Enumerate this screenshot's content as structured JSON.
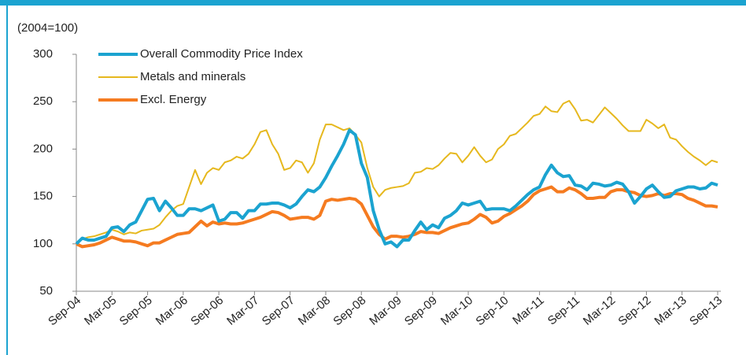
{
  "chart_data": {
    "type": "line",
    "y_label": "(2004=100)",
    "categories": [
      "Sep-04",
      null,
      null,
      null,
      null,
      null,
      "Mar-05",
      null,
      null,
      null,
      null,
      null,
      "Sep-05",
      null,
      null,
      null,
      null,
      null,
      "Mar-06",
      null,
      null,
      null,
      null,
      null,
      "Sep-06",
      null,
      null,
      null,
      null,
      null,
      "Mar-07",
      null,
      null,
      null,
      null,
      null,
      "Sep-07",
      null,
      null,
      null,
      null,
      null,
      "Mar-08",
      null,
      null,
      null,
      null,
      null,
      "Sep-08",
      null,
      null,
      null,
      null,
      null,
      "Mar-09",
      null,
      null,
      null,
      null,
      null,
      "Sep-09",
      null,
      null,
      null,
      null,
      null,
      "Mar-10",
      null,
      null,
      null,
      null,
      null,
      "Sep-10",
      null,
      null,
      null,
      null,
      null,
      "Mar-11",
      null,
      null,
      null,
      null,
      null,
      "Sep-11",
      null,
      null,
      null,
      null,
      null,
      "Mar-12",
      null,
      null,
      null,
      null,
      null,
      "Sep-12",
      null,
      null,
      null,
      null,
      null,
      "Mar-13",
      null,
      null,
      null,
      null,
      null,
      "Sep-13"
    ],
    "series": [
      {
        "name": "Overall Commodity Price Index",
        "color": "#1ba3d0",
        "width": 4,
        "values": [
          100,
          106,
          104,
          104,
          106,
          108,
          117,
          118,
          113,
          120,
          123,
          135,
          147,
          148,
          135,
          145,
          138,
          130,
          130,
          137,
          137,
          135,
          138,
          141,
          124,
          126,
          133,
          133,
          127,
          135,
          135,
          142,
          142,
          143,
          143,
          141,
          138,
          142,
          150,
          157,
          155,
          160,
          170,
          182,
          193,
          205,
          220,
          215,
          185,
          170,
          135,
          115,
          100,
          102,
          97,
          104,
          104,
          114,
          123,
          115,
          120,
          117,
          127,
          130,
          135,
          143,
          141,
          143,
          145,
          136,
          137,
          137,
          137,
          135,
          140,
          146,
          152,
          157,
          160,
          173,
          183,
          175,
          171,
          172,
          162,
          161,
          157,
          164,
          163,
          161,
          162,
          165,
          163,
          155,
          143,
          150,
          158,
          162,
          155,
          149,
          150,
          156,
          158,
          160,
          160,
          158,
          159,
          164,
          162
        ]
      },
      {
        "name": "Metals and minerals",
        "color": "#e6b81e",
        "width": 2,
        "values": [
          100,
          105,
          107,
          108,
          110,
          112,
          115,
          113,
          110,
          112,
          111,
          114,
          115,
          116,
          120,
          128,
          135,
          140,
          142,
          160,
          178,
          163,
          175,
          180,
          178,
          186,
          188,
          192,
          190,
          195,
          205,
          218,
          220,
          205,
          195,
          178,
          180,
          188,
          186,
          175,
          185,
          210,
          226,
          226,
          223,
          220,
          222,
          215,
          207,
          180,
          160,
          150,
          157,
          159,
          160,
          161,
          164,
          175,
          176,
          180,
          179,
          183,
          190,
          196,
          195,
          186,
          193,
          202,
          193,
          186,
          189,
          200,
          205,
          214,
          216,
          222,
          228,
          235,
          237,
          245,
          240,
          239,
          248,
          251,
          242,
          230,
          231,
          228,
          236,
          244,
          238,
          232,
          225,
          219,
          219,
          219,
          231,
          227,
          222,
          226,
          212,
          210,
          203,
          197,
          192,
          188,
          183,
          188,
          186
        ]
      },
      {
        "name": "Excl. Energy",
        "color": "#f57b20",
        "width": 4,
        "values": [
          100,
          97,
          98,
          99,
          101,
          104,
          107,
          105,
          103,
          103,
          102,
          100,
          98,
          101,
          101,
          104,
          107,
          110,
          111,
          112,
          118,
          124,
          119,
          123,
          121,
          122,
          121,
          121,
          122,
          124,
          126,
          128,
          131,
          134,
          133,
          130,
          126,
          127,
          128,
          128,
          126,
          130,
          145,
          147,
          146,
          147,
          148,
          147,
          142,
          130,
          118,
          110,
          105,
          108,
          108,
          107,
          108,
          110,
          113,
          112,
          112,
          111,
          114,
          117,
          119,
          121,
          122,
          126,
          131,
          128,
          122,
          124,
          129,
          132,
          136,
          140,
          145,
          152,
          156,
          158,
          160,
          155,
          155,
          159,
          157,
          153,
          148,
          148,
          149,
          149,
          155,
          157,
          157,
          155,
          154,
          151,
          150,
          151,
          153,
          151,
          153,
          153,
          152,
          148,
          146,
          143,
          140,
          140,
          139
        ]
      }
    ],
    "ylim": [
      50,
      300
    ],
    "yticks": [
      50,
      100,
      150,
      200,
      250,
      300
    ],
    "legend": "upper left",
    "grid": false
  }
}
